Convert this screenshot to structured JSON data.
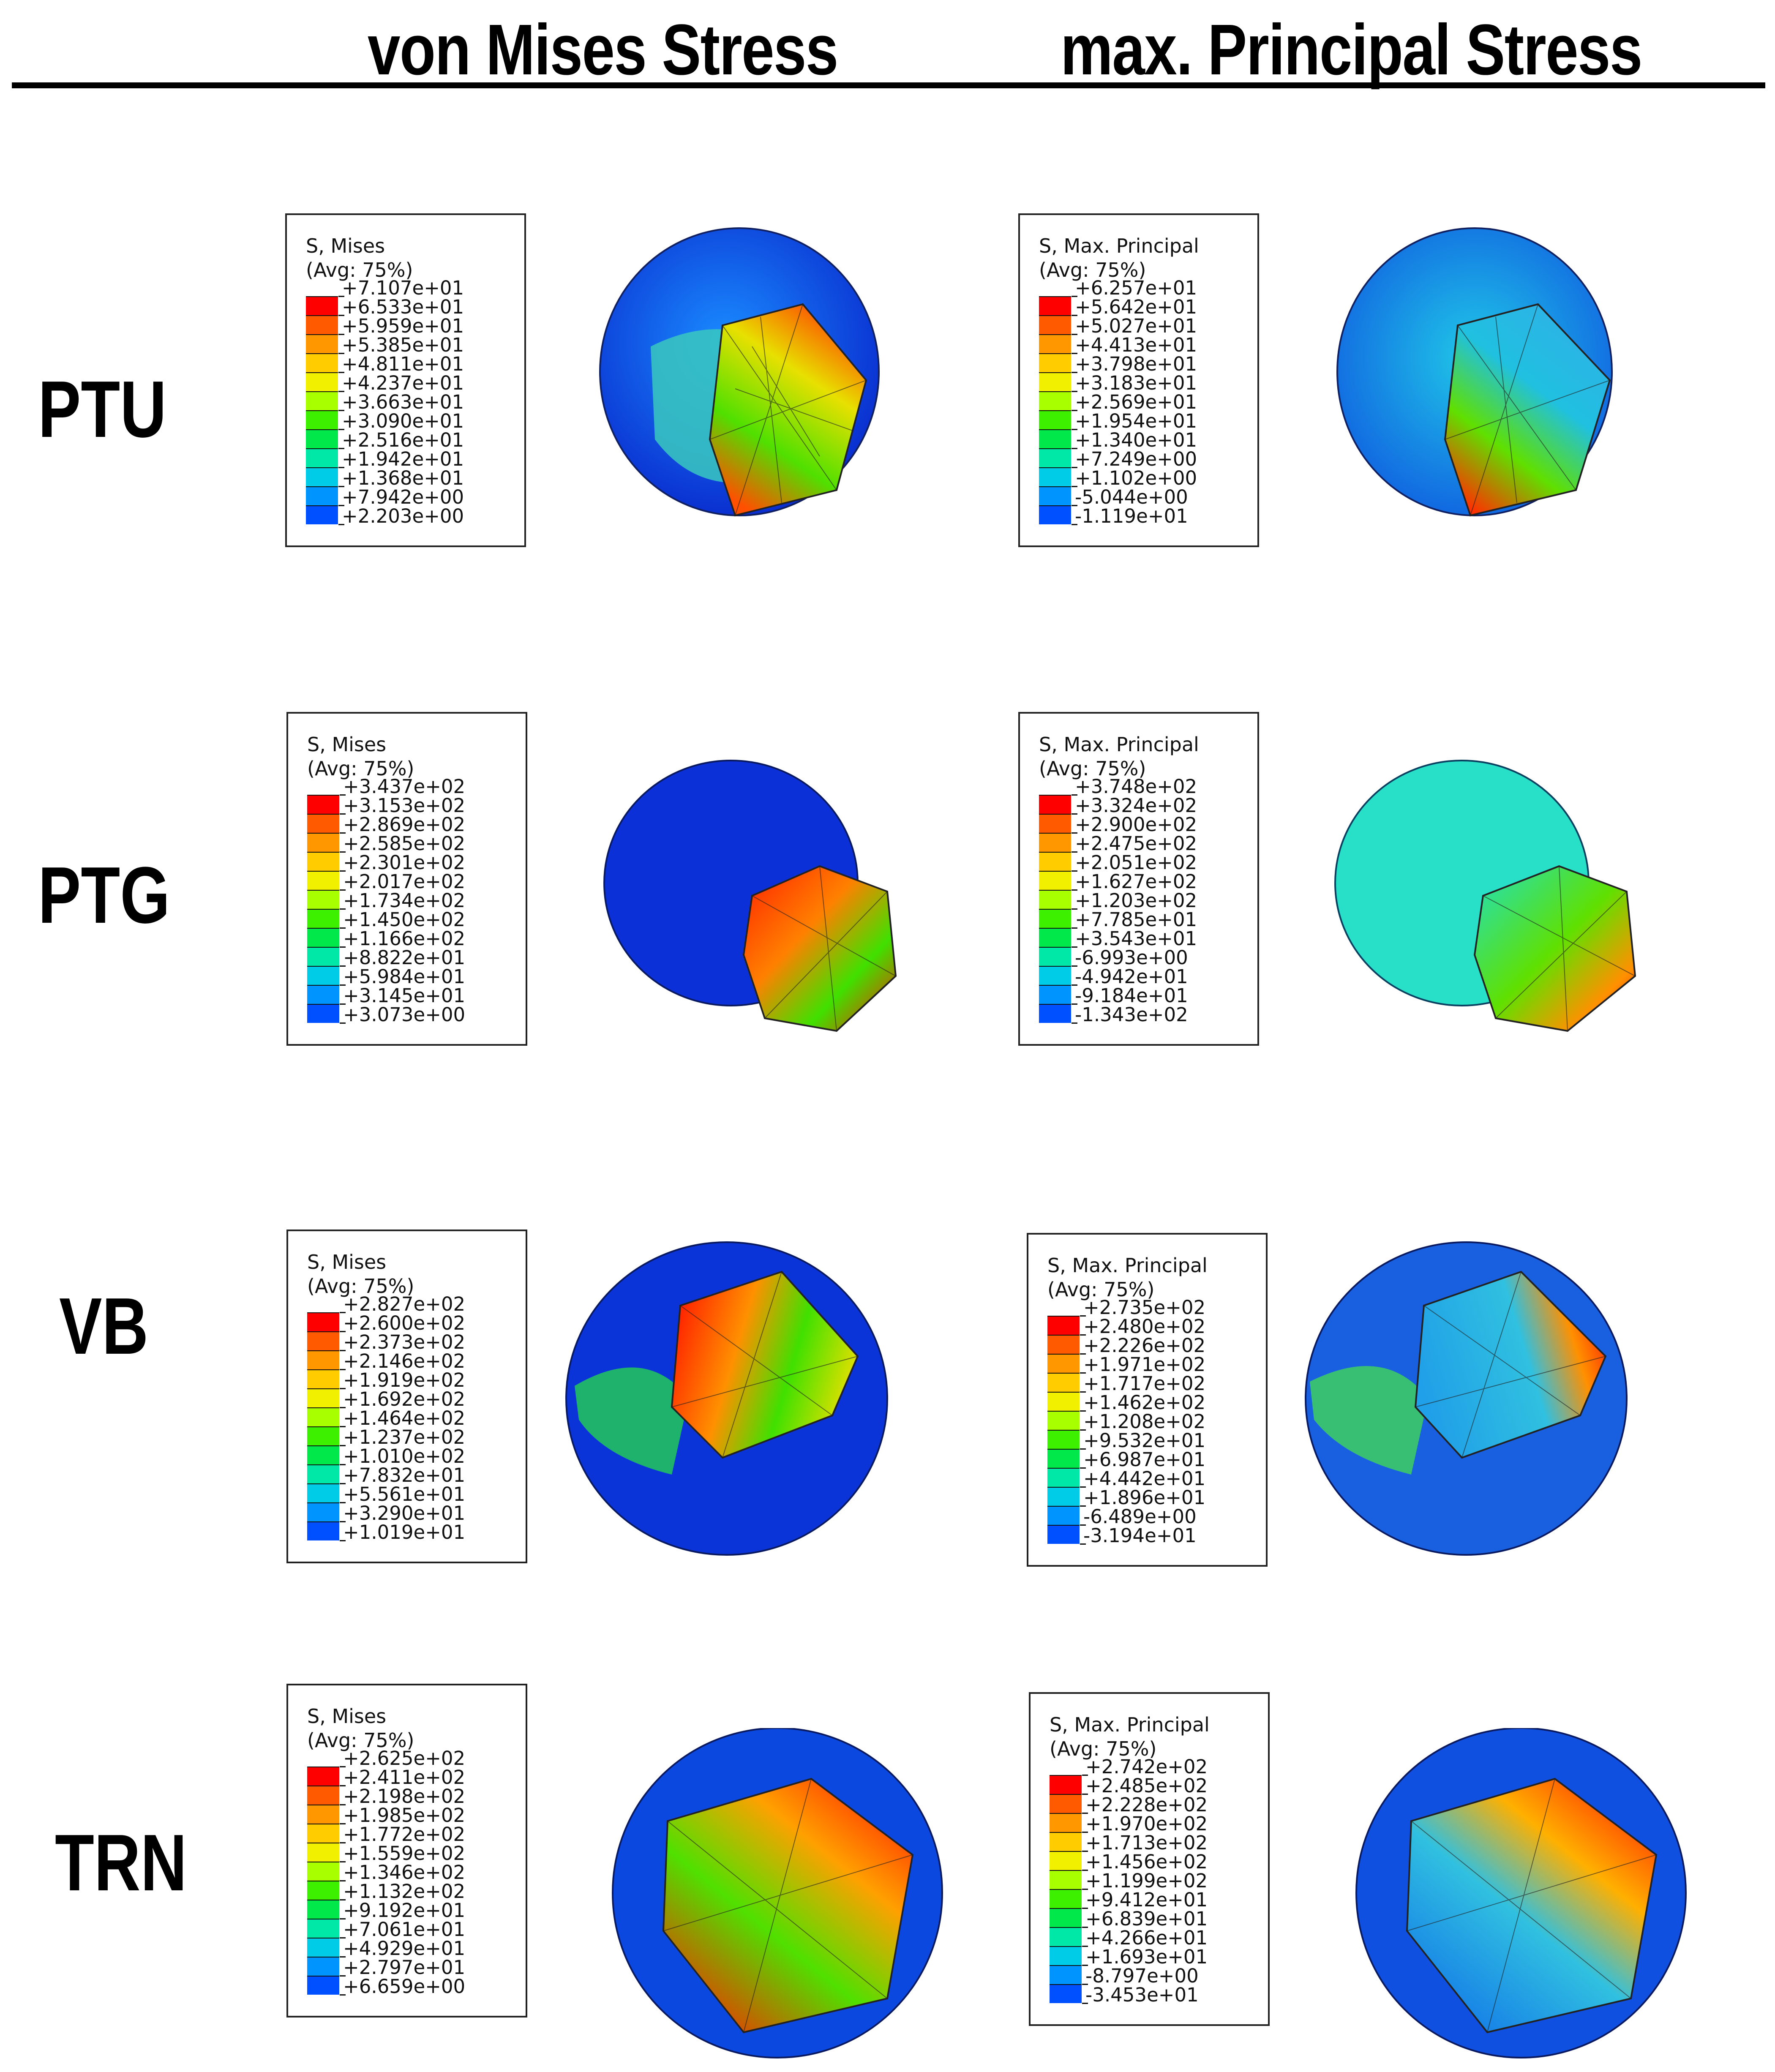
{
  "headers": {
    "col1": "von Mises Stress",
    "col2": "max. Principal Stress"
  },
  "legend_colors": [
    "#ff0000",
    "#ff5a00",
    "#ff9800",
    "#ffcc00",
    "#f0f000",
    "#a8ff00",
    "#3cf000",
    "#00e84a",
    "#00e8a8",
    "#00cce8",
    "#0094ff",
    "#0050ff",
    "#0000ff"
  ],
  "rows": [
    {
      "label": "PTU",
      "mises": {
        "title": "S, Mises",
        "avg": "(Avg: 75%)",
        "values": [
          "+7.107e+01",
          "+6.533e+01",
          "+5.959e+01",
          "+5.385e+01",
          "+4.811e+01",
          "+4.237e+01",
          "+3.663e+01",
          "+3.090e+01",
          "+2.516e+01",
          "+1.942e+01",
          "+1.368e+01",
          "+7.942e+00",
          "+2.203e+00"
        ]
      },
      "principal": {
        "title": "S, Max. Principal",
        "avg": "(Avg: 75%)",
        "values": [
          "+6.257e+01",
          "+5.642e+01",
          "+5.027e+01",
          "+4.413e+01",
          "+3.798e+01",
          "+3.183e+01",
          "+2.569e+01",
          "+1.954e+01",
          "+1.340e+01",
          "+7.249e+00",
          "+1.102e+00",
          "-5.044e+00",
          "-1.119e+01"
        ]
      }
    },
    {
      "label": "PTG",
      "mises": {
        "title": "S, Mises",
        "avg": "(Avg: 75%)",
        "values": [
          "+3.437e+02",
          "+3.153e+02",
          "+2.869e+02",
          "+2.585e+02",
          "+2.301e+02",
          "+2.017e+02",
          "+1.734e+02",
          "+1.450e+02",
          "+1.166e+02",
          "+8.822e+01",
          "+5.984e+01",
          "+3.145e+01",
          "+3.073e+00"
        ]
      },
      "principal": {
        "title": "S, Max. Principal",
        "avg": "(Avg: 75%)",
        "values": [
          "+3.748e+02",
          "+3.324e+02",
          "+2.900e+02",
          "+2.475e+02",
          "+2.051e+02",
          "+1.627e+02",
          "+1.203e+02",
          "+7.785e+01",
          "+3.543e+01",
          "-6.993e+00",
          "-4.942e+01",
          "-9.184e+01",
          "-1.343e+02"
        ]
      }
    },
    {
      "label": "VB",
      "mises": {
        "title": "S, Mises",
        "avg": "(Avg: 75%)",
        "values": [
          "+2.827e+02",
          "+2.600e+02",
          "+2.373e+02",
          "+2.146e+02",
          "+1.919e+02",
          "+1.692e+02",
          "+1.464e+02",
          "+1.237e+02",
          "+1.010e+02",
          "+7.832e+01",
          "+5.561e+01",
          "+3.290e+01",
          "+1.019e+01"
        ]
      },
      "principal": {
        "title": "S, Max. Principal",
        "avg": "(Avg: 75%)",
        "values": [
          "+2.735e+02",
          "+2.480e+02",
          "+2.226e+02",
          "+1.971e+02",
          "+1.717e+02",
          "+1.462e+02",
          "+1.208e+02",
          "+9.532e+01",
          "+6.987e+01",
          "+4.442e+01",
          "+1.896e+01",
          "-6.489e+00",
          "-3.194e+01"
        ]
      }
    },
    {
      "label": "TRN",
      "mises": {
        "title": "S, Mises",
        "avg": "(Avg: 75%)",
        "values": [
          "+2.625e+02",
          "+2.411e+02",
          "+2.198e+02",
          "+1.985e+02",
          "+1.772e+02",
          "+1.559e+02",
          "+1.346e+02",
          "+1.132e+02",
          "+9.192e+01",
          "+7.061e+01",
          "+4.929e+01",
          "+2.797e+01",
          "+6.659e+00"
        ]
      },
      "principal": {
        "title": "S, Max. Principal",
        "avg": "(Avg: 75%)",
        "values": [
          "+2.742e+02",
          "+2.485e+02",
          "+2.228e+02",
          "+1.970e+02",
          "+1.713e+02",
          "+1.456e+02",
          "+1.199e+02",
          "+9.412e+01",
          "+6.839e+01",
          "+4.266e+01",
          "+1.693e+01",
          "-8.797e+00",
          "-3.453e+01"
        ]
      }
    }
  ]
}
